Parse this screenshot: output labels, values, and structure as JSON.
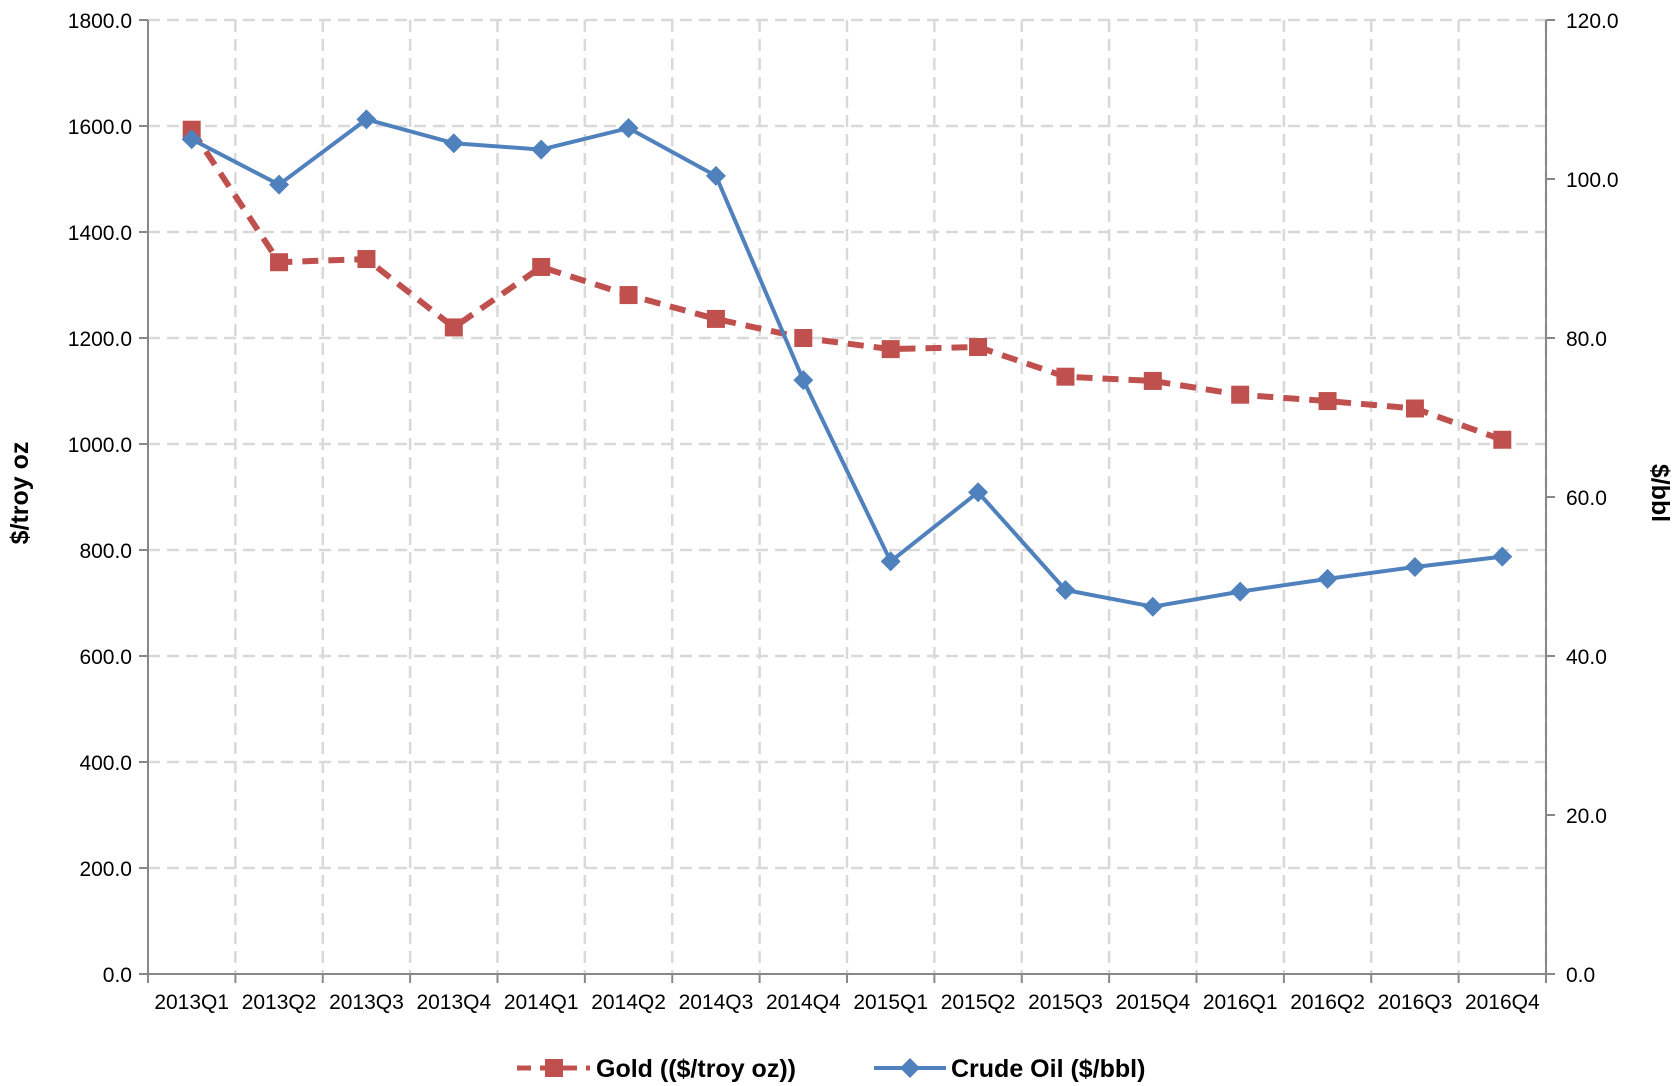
{
  "chart_data": {
    "type": "line",
    "categories": [
      "2013Q1",
      "2013Q2",
      "2013Q3",
      "2013Q4",
      "2014Q1",
      "2014Q2",
      "2014Q3",
      "2014Q4",
      "2015Q1",
      "2015Q2",
      "2015Q3",
      "2015Q4",
      "2016Q1",
      "2016Q2",
      "2016Q3",
      "2016Q4"
    ],
    "series": [
      {
        "name": "Gold (($/troy oz))",
        "axis": "left",
        "color": "#C0504D",
        "line_style": "dashed",
        "marker": "square",
        "values": [
          1593,
          1343,
          1349,
          1220,
          1334,
          1281,
          1236,
          1200,
          1179,
          1183,
          1127,
          1119,
          1093,
          1081,
          1067,
          1008
        ]
      },
      {
        "name": "Crude Oil ($/bbl)",
        "axis": "right",
        "color": "#4F81BD",
        "line_style": "solid",
        "marker": "diamond",
        "values": [
          105.0,
          99.3,
          107.5,
          104.5,
          103.7,
          106.4,
          100.4,
          74.7,
          51.9,
          60.6,
          48.3,
          46.2,
          48.1,
          49.7,
          51.2,
          52.5
        ]
      }
    ],
    "ylabel": "$/troy oz",
    "y2label": "$/bbl",
    "ylim": [
      0,
      1800
    ],
    "y2lim": [
      0,
      120
    ],
    "yticks": [
      "0.0",
      "200.0",
      "400.0",
      "600.0",
      "800.0",
      "1000.0",
      "1200.0",
      "1400.0",
      "1600.0",
      "1800.0"
    ],
    "y2ticks": [
      "0.0",
      "20.0",
      "40.0",
      "60.0",
      "80.0",
      "100.0",
      "120.0"
    ],
    "grid": "dashed",
    "legend_position": "bottom"
  }
}
